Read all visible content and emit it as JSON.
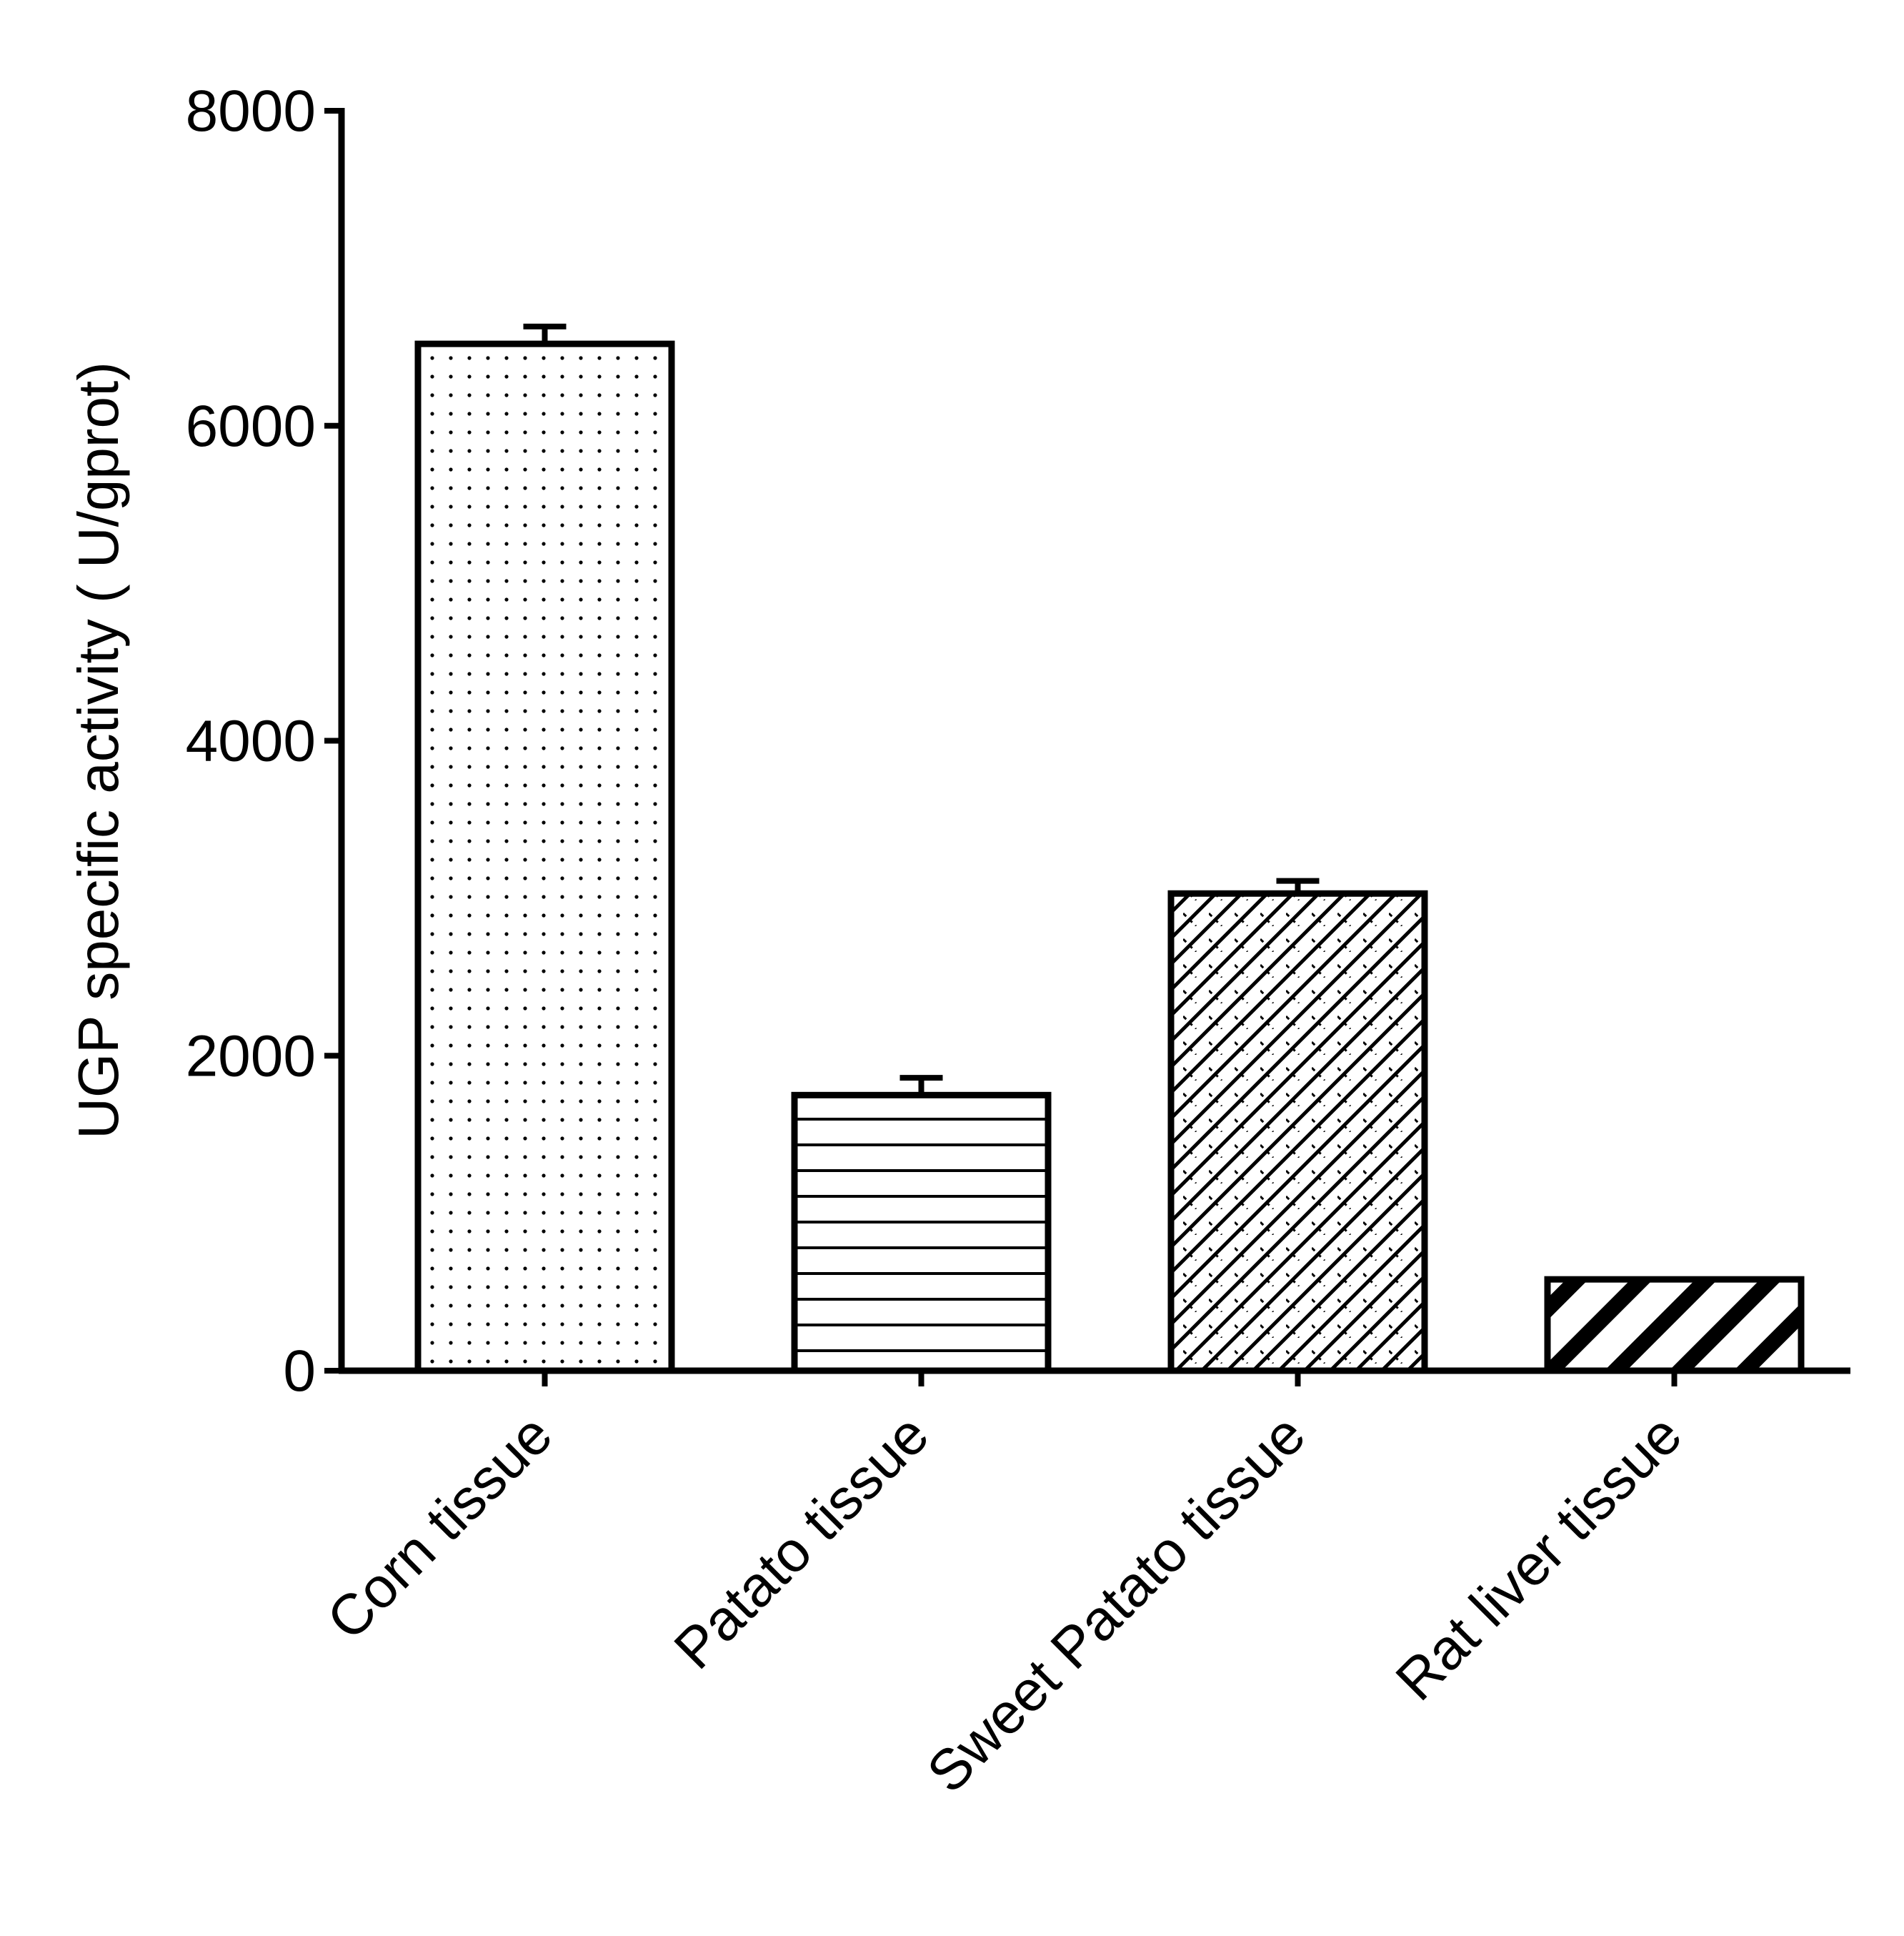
{
  "chart_data": {
    "type": "bar",
    "title": "",
    "xlabel": "",
    "ylabel": "UGP specific activity ( U/gprot)",
    "ylim": [
      0,
      8000
    ],
    "yticks": [
      "0",
      "2000",
      "4000",
      "6000",
      "8000"
    ],
    "categories": [
      "Corn tissue",
      "Patato tissue",
      "Sweet Patato tissue",
      "Rat liver tissue"
    ],
    "values": [
      6520,
      1750,
      3030,
      580
    ],
    "errors": [
      110,
      110,
      80,
      0
    ],
    "fill_patterns": [
      "dots",
      "horizontal-lines",
      "crosshatch",
      "diagonal-stripes"
    ],
    "bar_edge_color": "#000000",
    "bar_fill_color": "#ffffff",
    "grid": false,
    "legend": "none"
  }
}
